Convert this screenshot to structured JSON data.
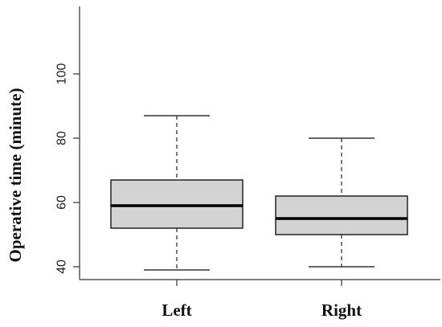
{
  "chart_data": {
    "type": "boxplot",
    "title": "",
    "xlabel": "",
    "ylabel": "Operative time (minute)",
    "ylim": [
      36,
      121
    ],
    "yticks": [
      40,
      60,
      80,
      100
    ],
    "grid": false,
    "categories": [
      "Left",
      "Right"
    ],
    "boxes": [
      {
        "category": "Left",
        "min": 39,
        "q1": 52,
        "median": 59,
        "q3": 67,
        "max": 87
      },
      {
        "category": "Right",
        "min": 40,
        "q1": 50,
        "median": 55,
        "q3": 62,
        "max": 80
      }
    ],
    "colors": {
      "box_fill": "#d3d3d3",
      "box_stroke": "#222222",
      "median": "#000000"
    }
  }
}
